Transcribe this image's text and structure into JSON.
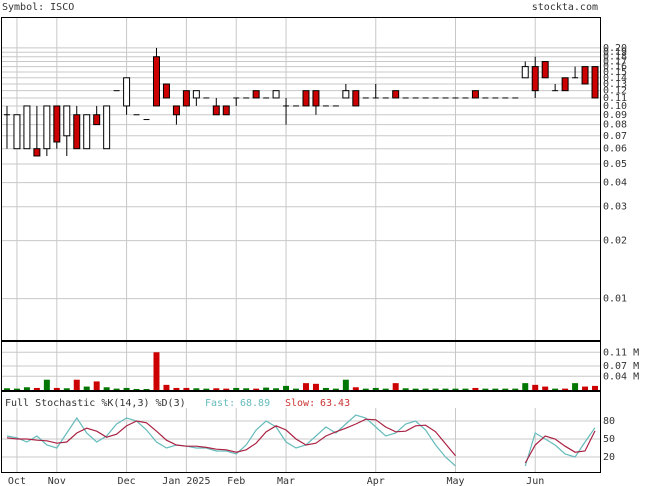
{
  "chart_data": {
    "type": "candlestick",
    "symbol": "Symbol: ISCO",
    "source": "stockta.com",
    "log_y": true,
    "grid": true,
    "ylim": [
      0.0061,
      0.286
    ],
    "yticks": [
      0.01,
      0.02,
      0.03,
      0.04,
      0.05,
      0.06,
      0.07,
      0.08,
      0.09,
      {
        "value": 0.1,
        "label": "0.10"
      },
      0.11,
      0.12,
      0.13,
      0.14,
      0.15,
      0.16,
      0.17,
      0.18,
      0.19,
      {
        "value": 0.2,
        "label": "0.20"
      }
    ],
    "xlim": [
      -0.5,
      59.5
    ],
    "xticks": [
      {
        "value": 1,
        "label": "Oct"
      },
      {
        "value": 5,
        "label": "Nov"
      },
      {
        "value": 12,
        "label": "Dec"
      },
      {
        "value": 18,
        "label": "Jan 2025"
      },
      {
        "value": 23,
        "label": "Feb"
      },
      {
        "value": 28,
        "label": "Mar"
      },
      {
        "value": 37,
        "label": "Apr"
      },
      {
        "value": 45,
        "label": "May"
      },
      {
        "value": 53,
        "label": "Jun"
      }
    ],
    "up_color": "#ffffff",
    "down_color": "#cc0000",
    "open": [
      0.09,
      0.06,
      0.06,
      0.06,
      0.06,
      0.1,
      0.07,
      0.09,
      0.06,
      0.09,
      0.06,
      0.12,
      0.1,
      0.09,
      0.085,
      0.18,
      0.13,
      0.1,
      0.12,
      0.11,
      0.11,
      0.1,
      0.1,
      0.11,
      0.11,
      0.12,
      0.11,
      0.11,
      0.1,
      0.1,
      0.12,
      0.12,
      0.1,
      0.1,
      0.11,
      0.12,
      0.11,
      0.11,
      0.11,
      0.12,
      0.11,
      0.11,
      0.11,
      0.11,
      0.11,
      0.11,
      0.11,
      0.12,
      0.11,
      0.11,
      0.11,
      0.11,
      0.14,
      0.16,
      0.17,
      0.12,
      0.14,
      0.14,
      0.16,
      0.16
    ],
    "high": [
      0.1,
      0.09,
      0.1,
      0.1,
      0.1,
      0.1,
      0.1,
      0.1,
      0.09,
      0.1,
      0.1,
      0.12,
      0.14,
      0.09,
      0.085,
      0.2,
      0.13,
      0.1,
      0.12,
      0.12,
      0.11,
      0.11,
      0.1,
      0.11,
      0.11,
      0.12,
      0.11,
      0.12,
      0.11,
      0.1,
      0.12,
      0.12,
      0.1,
      0.1,
      0.13,
      0.12,
      0.11,
      0.13,
      0.11,
      0.12,
      0.11,
      0.11,
      0.11,
      0.11,
      0.11,
      0.11,
      0.11,
      0.12,
      0.11,
      0.11,
      0.11,
      0.11,
      0.17,
      0.18,
      0.17,
      0.13,
      0.14,
      0.16,
      0.16,
      0.16
    ],
    "low": [
      0.06,
      0.06,
      0.06,
      0.055,
      0.055,
      0.06,
      0.055,
      0.06,
      0.06,
      0.08,
      0.06,
      0.12,
      0.09,
      0.09,
      0.085,
      0.1,
      0.11,
      0.08,
      0.1,
      0.1,
      0.11,
      0.09,
      0.09,
      0.1,
      0.11,
      0.11,
      0.11,
      0.11,
      0.08,
      0.1,
      0.1,
      0.09,
      0.1,
      0.1,
      0.11,
      0.1,
      0.11,
      0.11,
      0.11,
      0.11,
      0.11,
      0.11,
      0.11,
      0.11,
      0.11,
      0.11,
      0.11,
      0.11,
      0.11,
      0.11,
      0.11,
      0.11,
      0.14,
      0.11,
      0.14,
      0.12,
      0.12,
      0.14,
      0.13,
      0.11
    ],
    "close": [
      0.09,
      0.09,
      0.1,
      0.055,
      0.1,
      0.065,
      0.1,
      0.06,
      0.09,
      0.08,
      0.1,
      0.12,
      0.14,
      0.09,
      0.085,
      0.1,
      0.11,
      0.09,
      0.1,
      0.12,
      0.11,
      0.09,
      0.09,
      0.11,
      0.11,
      0.11,
      0.11,
      0.12,
      0.1,
      0.1,
      0.1,
      0.1,
      0.1,
      0.1,
      0.12,
      0.1,
      0.11,
      0.11,
      0.11,
      0.11,
      0.11,
      0.11,
      0.11,
      0.11,
      0.11,
      0.11,
      0.11,
      0.11,
      0.11,
      0.11,
      0.11,
      0.11,
      0.16,
      0.12,
      0.14,
      0.12,
      0.12,
      0.14,
      0.13,
      0.11
    ],
    "volume": {
      "ylim": [
        0,
        0.14
      ],
      "yticks": [
        {
          "value": 0.04,
          "label": "0.04 M"
        },
        {
          "value": 0.07,
          "label": "0.07 M"
        },
        {
          "value": 0.11,
          "label": "0.11 M"
        }
      ],
      "up_color": "#007700",
      "down_color": "#cc0000",
      "values": [
        0.005,
        0.004,
        0.008,
        0.006,
        0.03,
        0.006,
        0.005,
        0.03,
        0.01,
        0.025,
        0.008,
        0.004,
        0.006,
        0.003,
        0.003,
        0.11,
        0.015,
        0.006,
        0.006,
        0.005,
        0.004,
        0.005,
        0.004,
        0.006,
        0.005,
        0.004,
        0.007,
        0.005,
        0.012,
        0.004,
        0.02,
        0.018,
        0.006,
        0.004,
        0.03,
        0.008,
        0.004,
        0.006,
        0.004,
        0.02,
        0.005,
        0.004,
        0.004,
        0.004,
        0.004,
        0.004,
        0.004,
        0.006,
        0.004,
        0.004,
        0.004,
        0.004,
        0.02,
        0.015,
        0.01,
        0.004,
        0.004,
        0.02,
        0.01,
        0.012
      ]
    },
    "stochastic": {
      "title": "Full Stochastic %K(14,3) %D(3)",
      "fast_label": "Fast:",
      "slow_label": "Slow:",
      "ylim": [
        -5,
        125
      ],
      "yticks": [
        20,
        50,
        80
      ],
      "series": [
        {
          "name": "%K",
          "color": "#66bbbb",
          "values": [
            55,
            52,
            45,
            55,
            40,
            35,
            60,
            85,
            60,
            45,
            55,
            75,
            85,
            80,
            65,
            45,
            35,
            40,
            38,
            35,
            35,
            30,
            30,
            25,
            40,
            65,
            80,
            70,
            45,
            35,
            40,
            55,
            70,
            60,
            75,
            90,
            85,
            70,
            55,
            60,
            75,
            80,
            65,
            40,
            20,
            5,
            null,
            null,
            null,
            null,
            null,
            null,
            5,
            60,
            50,
            40,
            25,
            20,
            45,
            68.89
          ]
        },
        {
          "name": "%D",
          "color": "#aa2244",
          "values": [
            52,
            50,
            50,
            48,
            47,
            43,
            45,
            60,
            68,
            63,
            53,
            58,
            72,
            80,
            77,
            63,
            48,
            40,
            38,
            38,
            36,
            33,
            32,
            28,
            32,
            43,
            62,
            72,
            65,
            50,
            40,
            43,
            55,
            62,
            68,
            75,
            83,
            82,
            70,
            62,
            63,
            72,
            73,
            62,
            42,
            22,
            null,
            null,
            null,
            null,
            null,
            null,
            10,
            40,
            55,
            50,
            38,
            28,
            30,
            63.43
          ]
        }
      ]
    }
  }
}
